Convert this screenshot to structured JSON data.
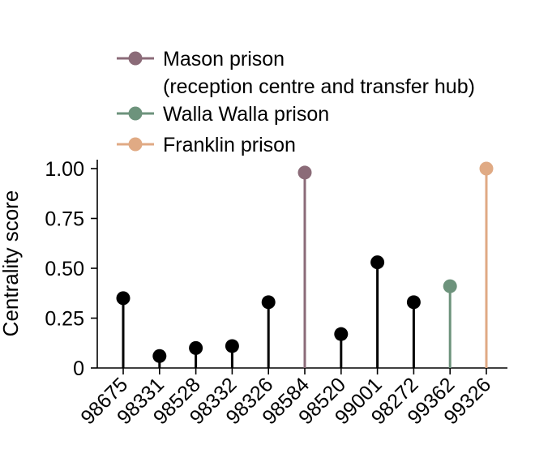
{
  "chart_data": {
    "type": "lollipop",
    "title": "",
    "xlabel": "",
    "ylabel": "Centrality score",
    "ylim": [
      0,
      1
    ],
    "yticks": [
      "0",
      "0.25",
      "0.50",
      "0.75",
      "1.00"
    ],
    "ytick_values": [
      0,
      0.25,
      0.5,
      0.75,
      1.0
    ],
    "grid": false,
    "legend_position": "top",
    "default_color": "#000000",
    "categories": [
      "98675",
      "98331",
      "98528",
      "98332",
      "98326",
      "98584",
      "98520",
      "99001",
      "98272",
      "99362",
      "99326"
    ],
    "values": [
      0.35,
      0.06,
      0.1,
      0.11,
      0.33,
      0.98,
      0.17,
      0.53,
      0.33,
      0.41,
      1.0
    ],
    "highlight": {
      "98584": "mason",
      "99362": "walla",
      "99326": "franklin"
    },
    "legend": [
      {
        "key": "mason",
        "label": "Mason prison",
        "label2": "(reception centre and transfer hub)",
        "color": "#8b6b78"
      },
      {
        "key": "walla",
        "label": "Walla Walla prison",
        "label2": "",
        "color": "#6d937c"
      },
      {
        "key": "franklin",
        "label": "Franklin prison",
        "label2": "",
        "color": "#e0aa84"
      }
    ]
  }
}
